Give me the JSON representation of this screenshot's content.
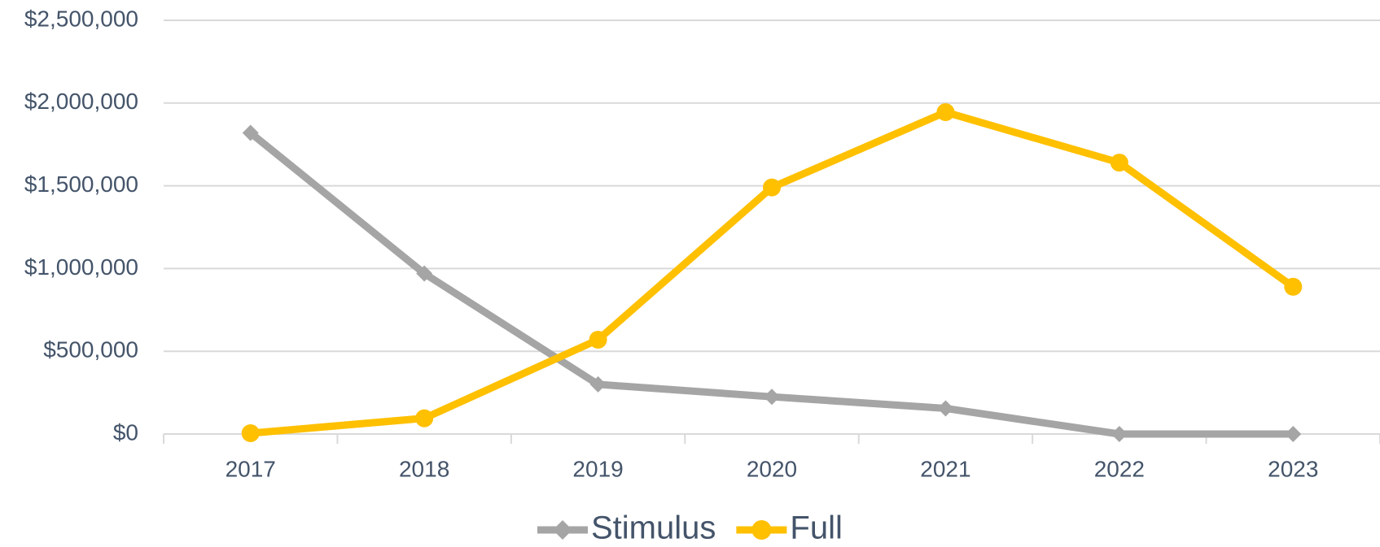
{
  "chart_data": {
    "type": "line",
    "categories": [
      "2017",
      "2018",
      "2019",
      "2020",
      "2021",
      "2022",
      "2023"
    ],
    "series": [
      {
        "name": "Stimulus",
        "color": "#a5a5a5",
        "marker": "diamond",
        "values": [
          1820000,
          970000,
          300000,
          225000,
          155000,
          0,
          0
        ]
      },
      {
        "name": "Full",
        "color": "#ffc000",
        "marker": "circle",
        "values": [
          5000,
          95000,
          570000,
          1490000,
          1945000,
          1640000,
          890000
        ]
      }
    ],
    "ylim": [
      0,
      2500000
    ],
    "yticks": [
      {
        "value": 0,
        "label": "$0"
      },
      {
        "value": 500000,
        "label": "$500,000"
      },
      {
        "value": 1000000,
        "label": "$1,000,000"
      },
      {
        "value": 1500000,
        "label": "$1,500,000"
      },
      {
        "value": 2000000,
        "label": "$2,000,000"
      },
      {
        "value": 2500000,
        "label": "$2,500,000"
      }
    ],
    "grid": true,
    "legend": "bottom"
  }
}
